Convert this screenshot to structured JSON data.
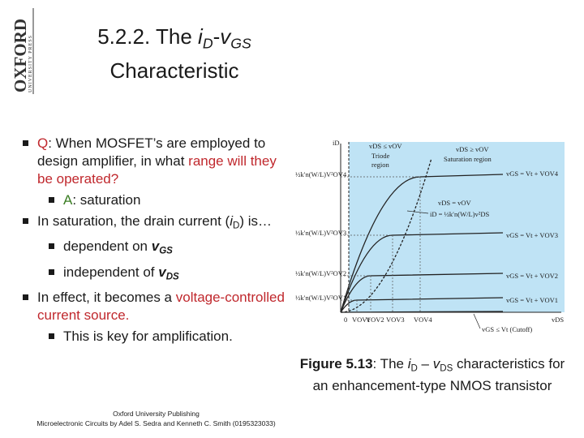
{
  "logo": {
    "name": "OXFORD",
    "subtitle": "UNIVERSITY PRESS"
  },
  "title": [
    [
      {
        "text": "5.2.2. The "
      },
      {
        "text": "i",
        "style": "italic"
      },
      {
        "text": "D",
        "style": "isub"
      },
      {
        "text": "-"
      },
      {
        "text": "v",
        "style": "italic"
      },
      {
        "text": "GS",
        "style": "isub"
      }
    ],
    [
      {
        "text": "Characteristic"
      }
    ]
  ],
  "bullets": [
    {
      "level": 1,
      "runs": [
        {
          "text": "Q",
          "style": "red"
        },
        {
          "text": ": When MOSFET’s are employed to design amplifier, in what "
        },
        {
          "text": "range will they be operated?",
          "style": "red"
        }
      ]
    },
    {
      "level": 2,
      "runs": [
        {
          "text": "A",
          "style": "green"
        },
        {
          "text": ": saturation"
        }
      ]
    },
    {
      "level": 1,
      "runs": [
        {
          "text": "In saturation, the drain current ("
        },
        {
          "text": "i",
          "style": "italic"
        },
        {
          "text": "D",
          "style": "sub"
        },
        {
          "text": ") is…"
        }
      ]
    },
    {
      "level": 2,
      "runs": [
        {
          "text": "dependent on "
        },
        {
          "text": "v",
          "style": "bi"
        },
        {
          "text": "GS",
          "style": "bsub"
        }
      ]
    },
    {
      "level": 2,
      "runs": [
        {
          "text": "independent of "
        },
        {
          "text": "v",
          "style": "bi"
        },
        {
          "text": "DS",
          "style": "bsub"
        }
      ]
    },
    {
      "level": 1,
      "runs": [
        {
          "text": "In effect, it becomes a "
        },
        {
          "text": "voltage-controlled current source.",
          "style": "red"
        }
      ]
    },
    {
      "level": 2,
      "runs": [
        {
          "text": "This is key for amplification."
        }
      ]
    }
  ],
  "figure": {
    "y_label": "iD",
    "triode_condition": "vDS ≤ vOV",
    "triode_region": [
      "Triode",
      "region"
    ],
    "saturation_condition": "vDS ≥ vOV",
    "saturation_region": "Saturation region",
    "levels": [
      "½k′n(W/L)V²OV1",
      "½k′n(W/L)V²OV2",
      "½k′n(W/L)V²OV3",
      "½k′n(W/L)V²OV4"
    ],
    "curve_labels": [
      "vGS = Vt + VOV1",
      "vGS = Vt + VOV2",
      "vGS = Vt + VOV3",
      "vGS = Vt + VOV4"
    ],
    "boundary_condition": "vDS = vOV",
    "boundary_equation": "iD = ½k′n(W/L)v²DS",
    "origin": "0",
    "x_ticks": [
      "VOV1",
      "VOV2",
      "VOV3",
      "VOV4"
    ],
    "x_label": "vDS",
    "cutoff": "vGS ≤ Vt (Cutoff)"
  },
  "caption": [
    {
      "text": "Figure 5.13",
      "style": "bold"
    },
    {
      "text": ": The "
    },
    {
      "text": "i",
      "style": "italic"
    },
    {
      "text": "D",
      "style": "sub"
    },
    {
      "text": " – "
    },
    {
      "text": "v",
      "style": "italic"
    },
    {
      "text": "DS",
      "style": "sub"
    },
    {
      "text": " characteristics for an enhancement-type NMOS transistor"
    }
  ],
  "footer": [
    "Oxford University Publishing",
    "Microelectronic Circuits by Adel S. Sedra and Kenneth C. Smith (0195323033)"
  ]
}
